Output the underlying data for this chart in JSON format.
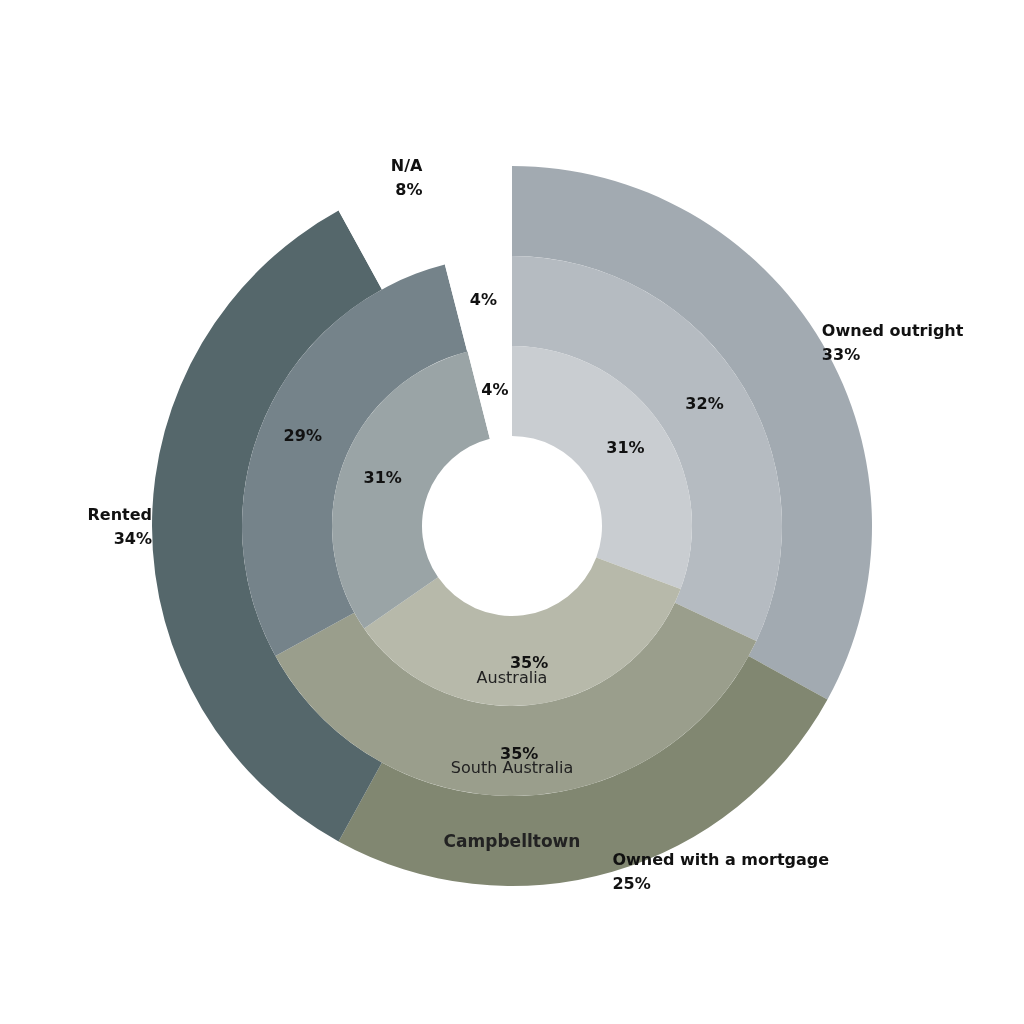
{
  "chart_data": {
    "type": "donut",
    "categories": [
      "Owned outright",
      "Owned with a mortgage",
      "Rented",
      "N/A"
    ],
    "legend": false,
    "series": [
      {
        "name": "Campbelltown",
        "values": [
          33,
          25,
          34,
          8
        ],
        "value_labels": [
          "33%",
          "25%",
          "34%",
          "8%"
        ],
        "colors": [
          "#a2aab1",
          "#818771",
          "#55676b",
          "#ffffff"
        ]
      },
      {
        "name": "South Australia",
        "values": [
          32,
          35,
          29,
          4
        ],
        "value_labels": [
          "32%",
          "35%",
          "29%",
          "4%"
        ],
        "colors": [
          "#b5bbc1",
          "#9a9e8c",
          "#75838a",
          "#ffffff"
        ]
      },
      {
        "name": "Australia",
        "values": [
          31,
          35,
          31,
          4
        ],
        "value_labels": [
          "31%",
          "35%",
          "31%",
          "4%"
        ],
        "colors": [
          "#c9cdd1",
          "#b7b9aa",
          "#9aa4a6",
          "#ffffff"
        ]
      }
    ]
  }
}
